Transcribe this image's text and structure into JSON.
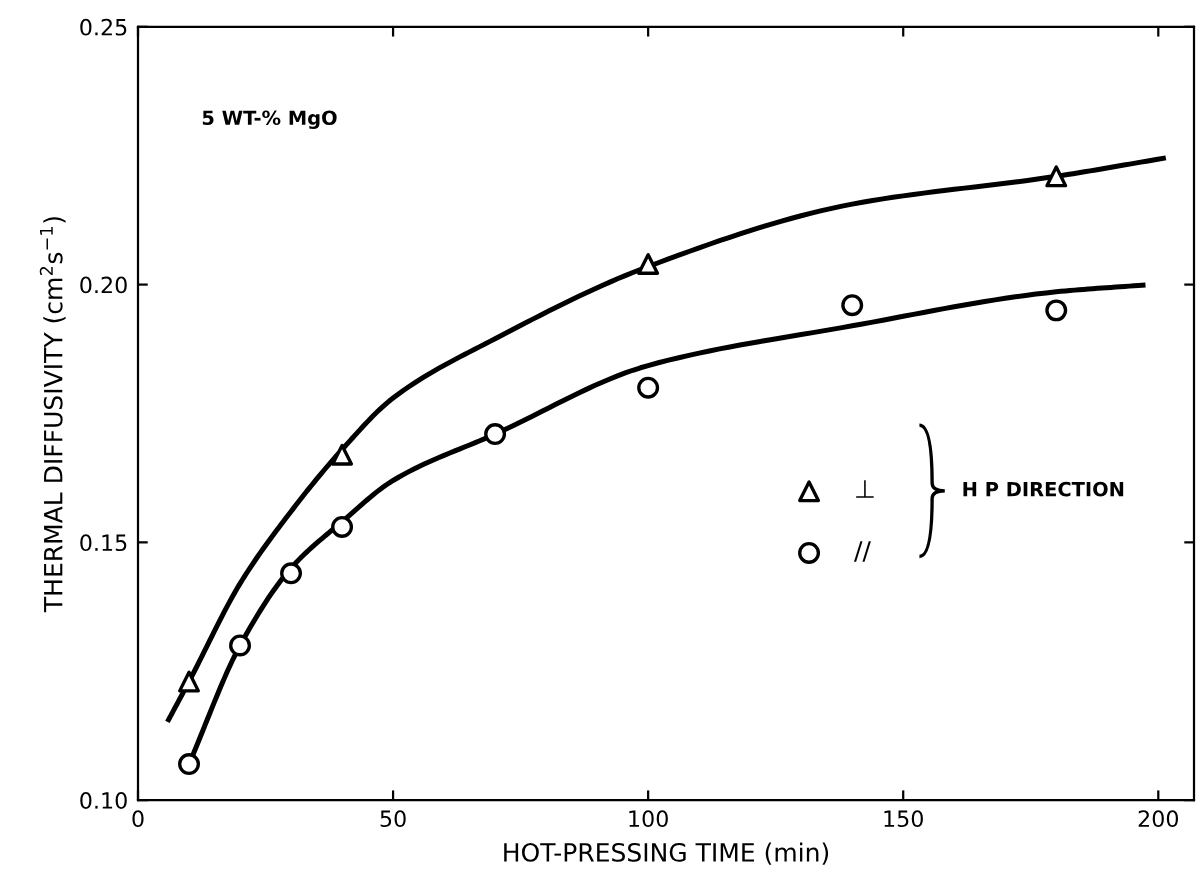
{
  "chart_data": {
    "type": "scatter",
    "xlabel": "HOT-PRESSING TIME (min)",
    "ylabel": "THERMAL DIFFUSIVITY (cm$^{2}$s$^{−1}$)",
    "annotations": [
      "5 WT-% MgO",
      "H P DIRECTION"
    ],
    "xlim": [
      0,
      207
    ],
    "xticks": [
      0,
      50,
      100,
      150,
      200
    ],
    "ylim": [
      0.1,
      0.25
    ],
    "yticks": [
      {
        "value": 0.1,
        "label": "0.10"
      },
      0.15,
      {
        "value": 0.2,
        "label": "0.20"
      },
      0.25
    ],
    "legend": "center right",
    "grid": false,
    "series": [
      {
        "name": "⊥",
        "marker": "triangle",
        "color": "#000000",
        "x": [
          10,
          40,
          100,
          180
        ],
        "values": [
          0.123,
          0.167,
          0.204,
          0.221
        ]
      },
      {
        "name": "//",
        "marker": "circle",
        "color": "#000000",
        "x": [
          10,
          20,
          30,
          40,
          70,
          100,
          140,
          180
        ],
        "values": [
          0.107,
          0.13,
          0.144,
          0.153,
          0.171,
          0.18,
          0.196,
          0.195
        ]
      },
      {
        "type": "line",
        "marker": "none",
        "color": "#000000",
        "x": [
          6,
          10,
          20,
          30,
          40,
          50,
          70,
          100,
          140,
          180,
          201
        ],
        "values": [
          0.1156,
          0.123,
          0.142,
          0.156,
          0.168,
          0.178,
          0.1895,
          0.2035,
          0.2156,
          0.221,
          0.2245
        ]
      },
      {
        "type": "line",
        "marker": "none",
        "color": "#000000",
        "x": [
          10,
          20,
          30,
          40,
          50,
          70,
          100,
          140,
          180,
          197
        ],
        "values": [
          0.107,
          0.13,
          0.145,
          0.154,
          0.162,
          0.171,
          0.1843,
          0.192,
          0.1986,
          0.1999
        ]
      }
    ]
  }
}
